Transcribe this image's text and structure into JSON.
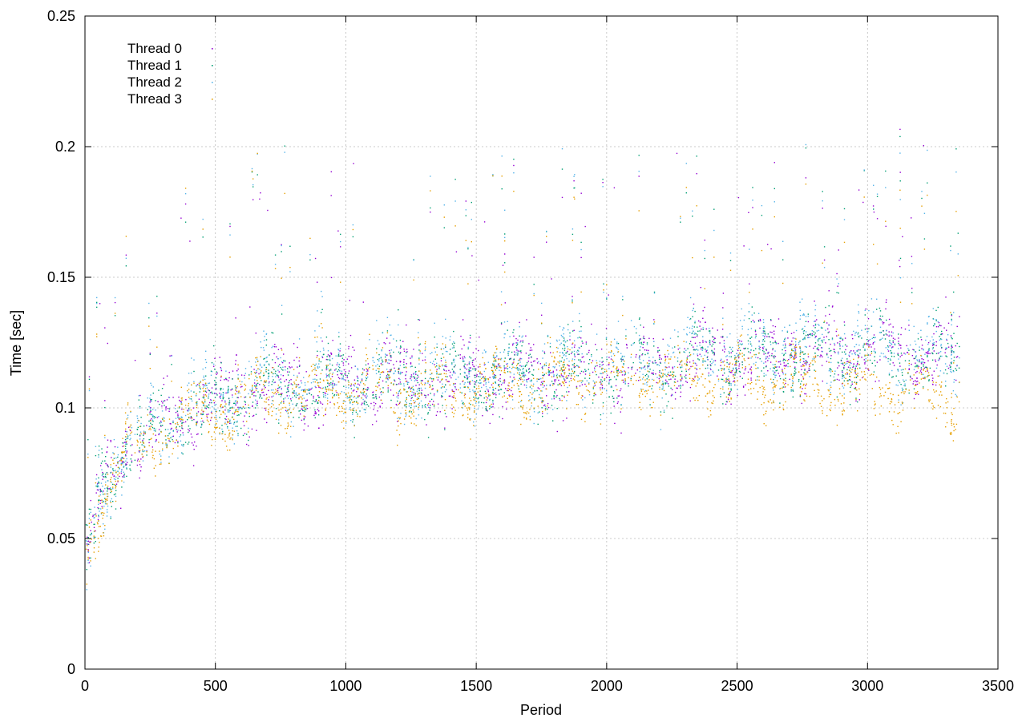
{
  "chart_data": {
    "type": "scatter",
    "title": "",
    "xlabel": "Period",
    "ylabel": "Time [sec]",
    "xlim": [
      0,
      3500
    ],
    "ylim": [
      0,
      0.25
    ],
    "x_ticks": [
      0,
      500,
      1000,
      1500,
      2000,
      2500,
      3000,
      3500
    ],
    "x_tick_labels": [
      "0",
      "500",
      "1000",
      "1500",
      "2000",
      "2500",
      "3000",
      "3500"
    ],
    "y_ticks": [
      0,
      0.05,
      0.1,
      0.15,
      0.2,
      0.25
    ],
    "y_tick_labels": [
      "0",
      "0.05",
      "0.1",
      "0.15",
      "0.2",
      "0.25"
    ],
    "grid": true,
    "legend_position": "top-left",
    "series": [
      {
        "name": "Thread 0",
        "color": "#9400d3",
        "style": "dots",
        "trend": [
          [
            0,
            0.04
          ],
          [
            50,
            0.065
          ],
          [
            150,
            0.085
          ],
          [
            300,
            0.095
          ],
          [
            500,
            0.103
          ],
          [
            700,
            0.108
          ],
          [
            1000,
            0.11
          ],
          [
            1500,
            0.112
          ],
          [
            2000,
            0.115
          ],
          [
            2500,
            0.12
          ],
          [
            3000,
            0.122
          ],
          [
            3350,
            0.12
          ]
        ],
        "spread": 0.012,
        "points_per_100_periods": 50
      },
      {
        "name": "Thread 1",
        "color": "#009e73",
        "style": "dots",
        "trend": [
          [
            0,
            0.04
          ],
          [
            50,
            0.065
          ],
          [
            150,
            0.085
          ],
          [
            300,
            0.095
          ],
          [
            500,
            0.103
          ],
          [
            700,
            0.108
          ],
          [
            1000,
            0.11
          ],
          [
            1500,
            0.112
          ],
          [
            2000,
            0.115
          ],
          [
            2500,
            0.12
          ],
          [
            3000,
            0.121
          ],
          [
            3350,
            0.118
          ]
        ],
        "spread": 0.012,
        "points_per_100_periods": 50
      },
      {
        "name": "Thread 2",
        "color": "#56b4e9",
        "style": "dots",
        "trend": [
          [
            0,
            0.04
          ],
          [
            50,
            0.066
          ],
          [
            150,
            0.086
          ],
          [
            300,
            0.096
          ],
          [
            500,
            0.104
          ],
          [
            700,
            0.11
          ],
          [
            1000,
            0.112
          ],
          [
            1500,
            0.113
          ],
          [
            2000,
            0.117
          ],
          [
            2500,
            0.122
          ],
          [
            3000,
            0.123
          ],
          [
            3350,
            0.12
          ]
        ],
        "spread": 0.013,
        "points_per_100_periods": 50
      },
      {
        "name": "Thread 3",
        "color": "#e69f00",
        "style": "dots",
        "trend": [
          [
            0,
            0.04
          ],
          [
            50,
            0.063
          ],
          [
            150,
            0.083
          ],
          [
            300,
            0.092
          ],
          [
            500,
            0.1
          ],
          [
            700,
            0.105
          ],
          [
            1000,
            0.108
          ],
          [
            1500,
            0.108
          ],
          [
            2000,
            0.112
          ],
          [
            2500,
            0.112
          ],
          [
            3000,
            0.108
          ],
          [
            3350,
            0.104
          ]
        ],
        "spread": 0.01,
        "points_per_100_periods": 50
      }
    ]
  }
}
